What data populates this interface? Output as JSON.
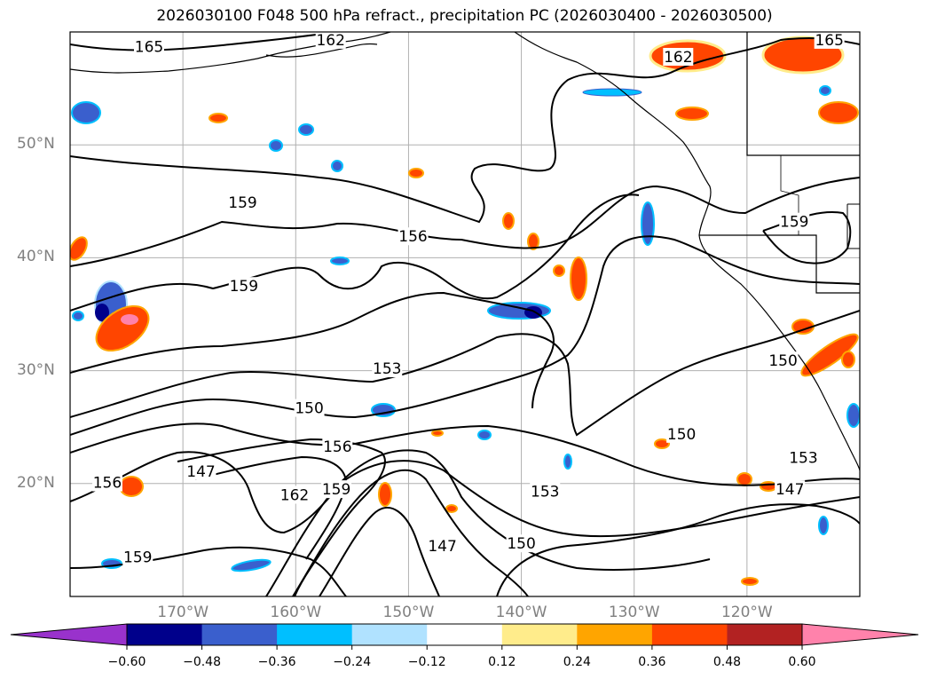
{
  "title": "2026030100 F048 500 hPa refract., precipitation PC (2026030400 - 2026030500)",
  "map": {
    "lon_range": [
      -180,
      -110
    ],
    "lat_range": [
      10,
      60
    ],
    "lat_ticks": [
      {
        "value": 50,
        "label": "50°N"
      },
      {
        "value": 40,
        "label": "40°N"
      },
      {
        "value": 30,
        "label": "30°N"
      },
      {
        "value": 20,
        "label": "20°N"
      }
    ],
    "lon_ticks": [
      {
        "value": -170,
        "label": "170°W"
      },
      {
        "value": -160,
        "label": "160°W"
      },
      {
        "value": -150,
        "label": "150°W"
      },
      {
        "value": -140,
        "label": "140°W"
      },
      {
        "value": -130,
        "label": "130°W"
      },
      {
        "value": -120,
        "label": "120°W"
      }
    ],
    "contour_labels": [
      {
        "text": "165",
        "lon": -173.0,
        "lat": 58.7
      },
      {
        "text": "162",
        "lon": -156.9,
        "lat": 59.3
      },
      {
        "text": "165",
        "lon": -112.7,
        "lat": 59.3
      },
      {
        "text": "162",
        "lon": -126.1,
        "lat": 57.8
      },
      {
        "text": "159",
        "lon": -164.7,
        "lat": 44.9
      },
      {
        "text": "156",
        "lon": -149.6,
        "lat": 41.9
      },
      {
        "text": "159",
        "lon": -115.8,
        "lat": 43.2
      },
      {
        "text": "159",
        "lon": -164.6,
        "lat": 37.5
      },
      {
        "text": "153",
        "lon": -151.9,
        "lat": 30.2
      },
      {
        "text": "150",
        "lon": -158.8,
        "lat": 26.7
      },
      {
        "text": "150",
        "lon": -116.8,
        "lat": 30.9
      },
      {
        "text": "156",
        "lon": -156.3,
        "lat": 23.3
      },
      {
        "text": "150",
        "lon": -125.8,
        "lat": 24.4
      },
      {
        "text": "147",
        "lon": -168.4,
        "lat": 21.1
      },
      {
        "text": "153",
        "lon": -115.0,
        "lat": 22.3
      },
      {
        "text": "156",
        "lon": -176.7,
        "lat": 20.1
      },
      {
        "text": "162",
        "lon": -160.1,
        "lat": 19.0
      },
      {
        "text": "159",
        "lon": -156.4,
        "lat": 19.5
      },
      {
        "text": "153",
        "lon": -137.9,
        "lat": 19.3
      },
      {
        "text": "147",
        "lon": -116.2,
        "lat": 19.5
      },
      {
        "text": "159",
        "lon": -174.0,
        "lat": 13.5
      },
      {
        "text": "147",
        "lon": -147.0,
        "lat": 14.5
      },
      {
        "text": "150",
        "lon": -140.0,
        "lat": 14.7
      }
    ]
  },
  "colorbar": {
    "ticks": [
      "−0.60",
      "−0.48",
      "−0.36",
      "−0.24",
      "−0.12",
      "0.12",
      "0.24",
      "0.36",
      "0.48",
      "0.60"
    ],
    "colors": [
      "#9932cc",
      "#00008b",
      "#3a5fcd",
      "#00bfff",
      "#b0e2ff",
      "#ffffff",
      "#ffec8b",
      "#ffa500",
      "#ff4500",
      "#b22222",
      "#ff82ab"
    ]
  }
}
